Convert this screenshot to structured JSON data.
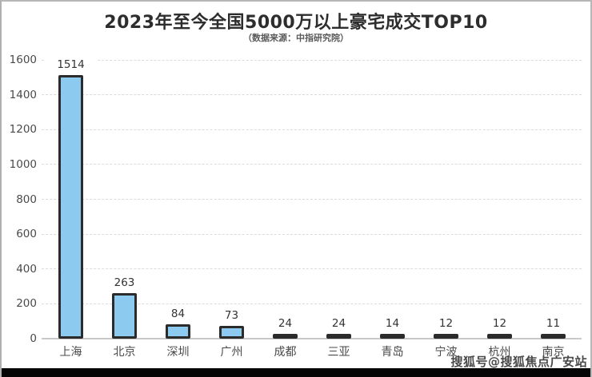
{
  "page": {
    "title": "2023年至今全国5000万以上豪宅成交TOP10",
    "subtitle": "（数据来源：中指研究院）",
    "watermark": "搜狐号@搜狐焦点广安站"
  },
  "chart_data": {
    "type": "bar",
    "title": "2023年至今全国5000万以上豪宅成交TOP10",
    "subtitle": "（数据来源：中指研究院）",
    "categories": [
      "上海",
      "北京",
      "深圳",
      "广州",
      "成都",
      "三亚",
      "青岛",
      "宁波",
      "杭州",
      "南京"
    ],
    "values": [
      1514,
      263,
      84,
      73,
      24,
      24,
      14,
      12,
      12,
      11
    ],
    "value_labels": [
      "1514",
      "263",
      "84",
      "73",
      "24",
      "24",
      "14",
      "12",
      "12",
      "11"
    ],
    "xlabel": "",
    "ylabel": "",
    "ylim": [
      0,
      1600
    ],
    "yticks": [
      0,
      200,
      400,
      600,
      800,
      1000,
      1200,
      1400,
      1600
    ],
    "grid": "horizontal-dashed",
    "legend_position": "none",
    "colors": {
      "bar_fill": "#8dcaef",
      "bar_border": "#2b2b2b",
      "gridline": "#dcdcdc",
      "axis_line": "#c9c9c9",
      "title_text": "#2d2d2d",
      "subtitle_text": "#595959",
      "tick_text": "#4a4a4a",
      "value_text": "#333333",
      "watermark_text": "#4a4a4a",
      "footer_strip": "#050505",
      "background": "#ffffff",
      "frame_border": "#b7b7b7"
    }
  }
}
